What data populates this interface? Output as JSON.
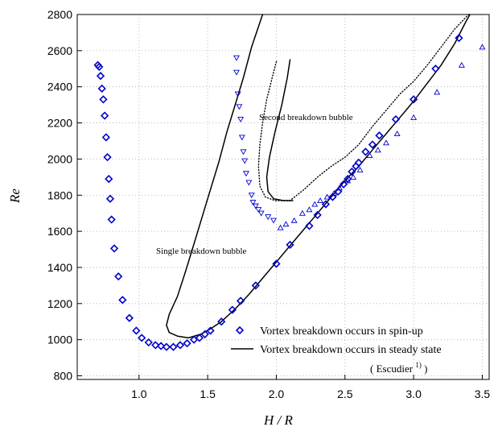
{
  "chart_data": {
    "type": "scatter",
    "xlabel": "H / R",
    "ylabel": "Re",
    "xlim": [
      0.55,
      3.55
    ],
    "ylim": [
      780,
      2800
    ],
    "xticks": [
      "1.0",
      "1.5",
      "2.0",
      "2.5",
      "3.0",
      "3.5"
    ],
    "yticks": [
      "800",
      "1000",
      "1200",
      "1400",
      "1600",
      "1800",
      "2000",
      "2200",
      "2400",
      "2600",
      "2800"
    ],
    "grid": true,
    "annotations": {
      "single": "Single breakdown bubble",
      "second": "Second breakdown bubble"
    },
    "legend": {
      "placement": "bottom-right",
      "spinup": "Vortex breakdown occurs in spin-up",
      "steady": "Vortex breakdown occurs in steady state",
      "citation_prefix": "( Escudier ",
      "citation_ref": "1)",
      "citation_suffix": " )"
    },
    "colors": {
      "markers": "#0000cc",
      "lines": "#000000",
      "grid": "#aaaaaa"
    },
    "series": [
      {
        "name": "Vortex breakdown occurs in spin-up",
        "marker": "diamond",
        "points": [
          [
            0.7,
            2520
          ],
          [
            0.71,
            2510
          ],
          [
            0.72,
            2460
          ],
          [
            0.73,
            2390
          ],
          [
            0.74,
            2330
          ],
          [
            0.75,
            2240
          ],
          [
            0.76,
            2120
          ],
          [
            0.77,
            2010
          ],
          [
            0.78,
            1890
          ],
          [
            0.79,
            1780
          ],
          [
            0.8,
            1665
          ],
          [
            0.82,
            1505
          ],
          [
            0.85,
            1350
          ],
          [
            0.88,
            1220
          ],
          [
            0.93,
            1120
          ],
          [
            0.98,
            1050
          ],
          [
            1.02,
            1010
          ],
          [
            1.07,
            985
          ],
          [
            1.12,
            970
          ],
          [
            1.16,
            965
          ],
          [
            1.2,
            960
          ],
          [
            1.25,
            960
          ],
          [
            1.3,
            970
          ],
          [
            1.35,
            980
          ],
          [
            1.4,
            1000
          ],
          [
            1.44,
            1010
          ],
          [
            1.48,
            1030
          ],
          [
            1.52,
            1050
          ],
          [
            1.6,
            1100
          ],
          [
            1.68,
            1165
          ],
          [
            1.74,
            1215
          ],
          [
            1.85,
            1300
          ],
          [
            2.0,
            1420
          ],
          [
            2.1,
            1525
          ],
          [
            2.24,
            1630
          ],
          [
            2.3,
            1690
          ],
          [
            2.36,
            1750
          ],
          [
            2.41,
            1790
          ],
          [
            2.45,
            1820
          ],
          [
            2.49,
            1860
          ],
          [
            2.52,
            1890
          ],
          [
            2.55,
            1930
          ],
          [
            2.58,
            1960
          ],
          [
            2.6,
            1980
          ],
          [
            2.65,
            2040
          ],
          [
            2.7,
            2080
          ],
          [
            2.75,
            2130
          ],
          [
            2.87,
            2220
          ],
          [
            3.0,
            2330
          ],
          [
            3.16,
            2500
          ],
          [
            3.33,
            2670
          ]
        ]
      },
      {
        "name": "",
        "marker": "triangle-down",
        "points": [
          [
            1.71,
            2560
          ],
          [
            1.71,
            2480
          ],
          [
            1.72,
            2360
          ],
          [
            1.73,
            2290
          ],
          [
            1.74,
            2220
          ],
          [
            1.75,
            2120
          ],
          [
            1.76,
            2040
          ],
          [
            1.77,
            1990
          ],
          [
            1.78,
            1920
          ],
          [
            1.8,
            1870
          ],
          [
            1.82,
            1800
          ],
          [
            1.83,
            1760
          ],
          [
            1.85,
            1740
          ],
          [
            1.87,
            1720
          ],
          [
            1.89,
            1700
          ],
          [
            1.94,
            1680
          ],
          [
            1.98,
            1660
          ]
        ]
      },
      {
        "name": "",
        "marker": "triangle-up",
        "points": [
          [
            2.03,
            1620
          ],
          [
            2.07,
            1640
          ],
          [
            2.13,
            1660
          ],
          [
            2.19,
            1700
          ],
          [
            2.24,
            1720
          ],
          [
            2.28,
            1750
          ],
          [
            2.32,
            1770
          ],
          [
            2.37,
            1790
          ],
          [
            2.42,
            1810
          ],
          [
            2.46,
            1840
          ],
          [
            2.52,
            1880
          ],
          [
            2.56,
            1900
          ],
          [
            2.61,
            1940
          ],
          [
            2.68,
            2020
          ],
          [
            2.74,
            2050
          ],
          [
            2.8,
            2090
          ],
          [
            2.88,
            2140
          ],
          [
            3.0,
            2230
          ],
          [
            3.17,
            2370
          ],
          [
            3.35,
            2520
          ],
          [
            3.5,
            2620
          ]
        ]
      },
      {
        "name": "Vortex breakdown occurs in steady state",
        "marker": "line",
        "segments": [
          [
            [
              1.9,
              2800
            ],
            [
              1.82,
              2620
            ],
            [
              1.76,
              2450
            ],
            [
              1.7,
              2300
            ],
            [
              1.64,
              2150
            ],
            [
              1.58,
              1980
            ],
            [
              1.5,
              1780
            ],
            [
              1.42,
              1580
            ],
            [
              1.34,
              1380
            ],
            [
              1.28,
              1240
            ],
            [
              1.22,
              1140
            ],
            [
              1.2,
              1080
            ],
            [
              1.22,
              1040
            ],
            [
              1.28,
              1020
            ],
            [
              1.36,
              1010
            ],
            [
              1.45,
              1030
            ],
            [
              1.52,
              1060
            ],
            [
              1.6,
              1100
            ],
            [
              1.7,
              1170
            ],
            [
              1.8,
              1250
            ],
            [
              1.9,
              1340
            ],
            [
              2.0,
              1430
            ],
            [
              2.1,
              1520
            ],
            [
              2.2,
              1610
            ],
            [
              2.3,
              1700
            ],
            [
              2.4,
              1790
            ],
            [
              2.5,
              1880
            ],
            [
              2.6,
              1960
            ],
            [
              2.7,
              2050
            ],
            [
              2.8,
              2140
            ],
            [
              2.9,
              2230
            ],
            [
              3.0,
              2320
            ],
            [
              3.1,
              2420
            ],
            [
              3.2,
              2520
            ],
            [
              3.3,
              2640
            ],
            [
              3.38,
              2760
            ],
            [
              3.41,
              2800
            ]
          ],
          [
            [
              2.1,
              2550
            ],
            [
              2.08,
              2450
            ],
            [
              2.04,
              2300
            ],
            [
              1.99,
              2150
            ],
            [
              1.95,
              2010
            ],
            [
              1.93,
              1900
            ],
            [
              1.94,
              1820
            ],
            [
              1.98,
              1780
            ],
            [
              2.05,
              1770
            ],
            [
              2.12,
              1770
            ]
          ]
        ]
      },
      {
        "name": "",
        "marker": "dotted",
        "segments": [
          [
            [
              2.0,
              2540
            ],
            [
              1.97,
              2450
            ],
            [
              1.93,
              2330
            ],
            [
              1.9,
              2200
            ],
            [
              1.88,
              2080
            ],
            [
              1.87,
              1960
            ],
            [
              1.88,
              1850
            ],
            [
              1.92,
              1790
            ],
            [
              1.99,
              1770
            ],
            [
              2.1,
              1770
            ],
            [
              2.2,
              1830
            ],
            [
              2.3,
              1900
            ],
            [
              2.4,
              1960
            ],
            [
              2.5,
              2010
            ],
            [
              2.6,
              2080
            ],
            [
              2.7,
              2180
            ],
            [
              2.8,
              2270
            ],
            [
              2.9,
              2360
            ],
            [
              3.0,
              2430
            ],
            [
              3.1,
              2520
            ],
            [
              3.2,
              2620
            ],
            [
              3.3,
              2720
            ],
            [
              3.4,
              2800
            ]
          ]
        ]
      }
    ]
  }
}
